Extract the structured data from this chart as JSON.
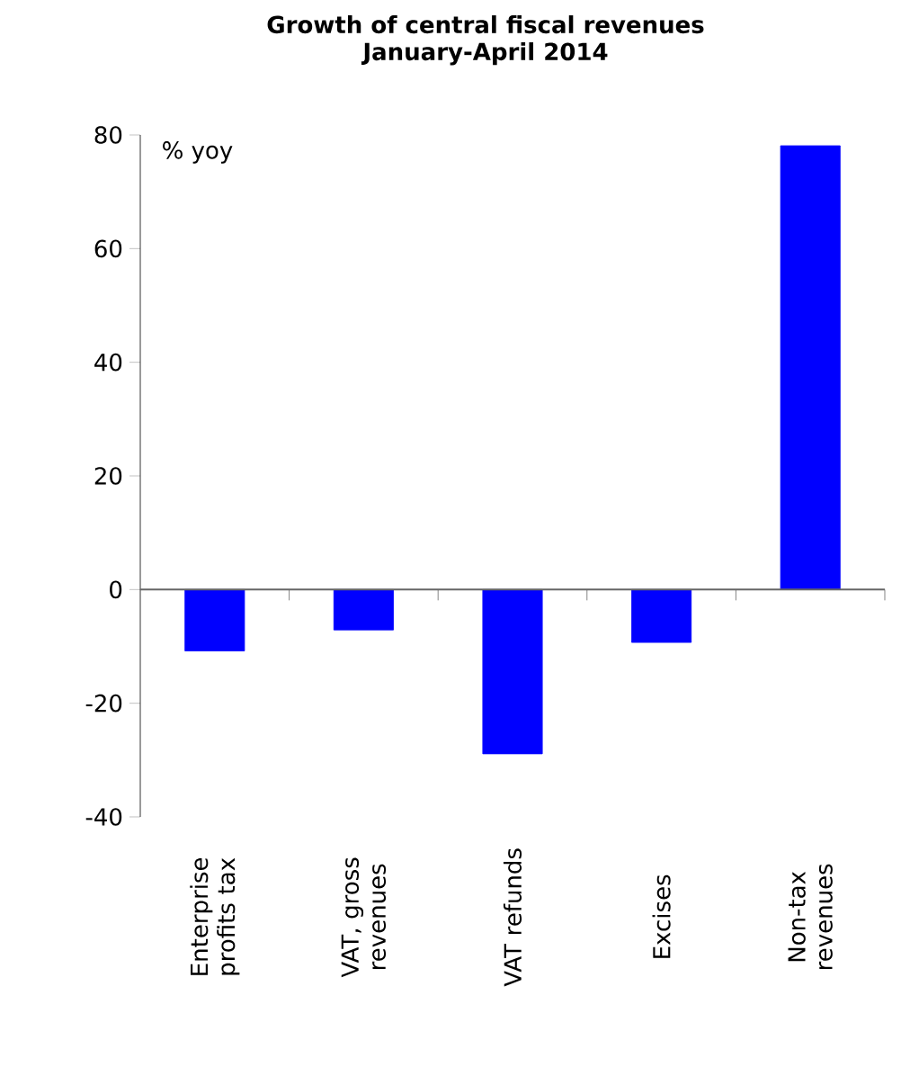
{
  "chart_data": {
    "type": "bar",
    "title": "Growth of central fiscal revenues\nJanuary-April  2014",
    "ylabel": "% yoy",
    "categories": [
      "Enterprise profits tax",
      "VAT, gross revenues",
      "VAT refunds",
      "Excises",
      "Non-tax revenues"
    ],
    "values": [
      -10.8,
      -7.1,
      -28.9,
      -9.3,
      78.1
    ],
    "color": "#0000ff",
    "ylim": [
      -40,
      80
    ],
    "yticks": [
      -40,
      -20,
      0,
      20,
      40,
      60,
      80
    ]
  }
}
